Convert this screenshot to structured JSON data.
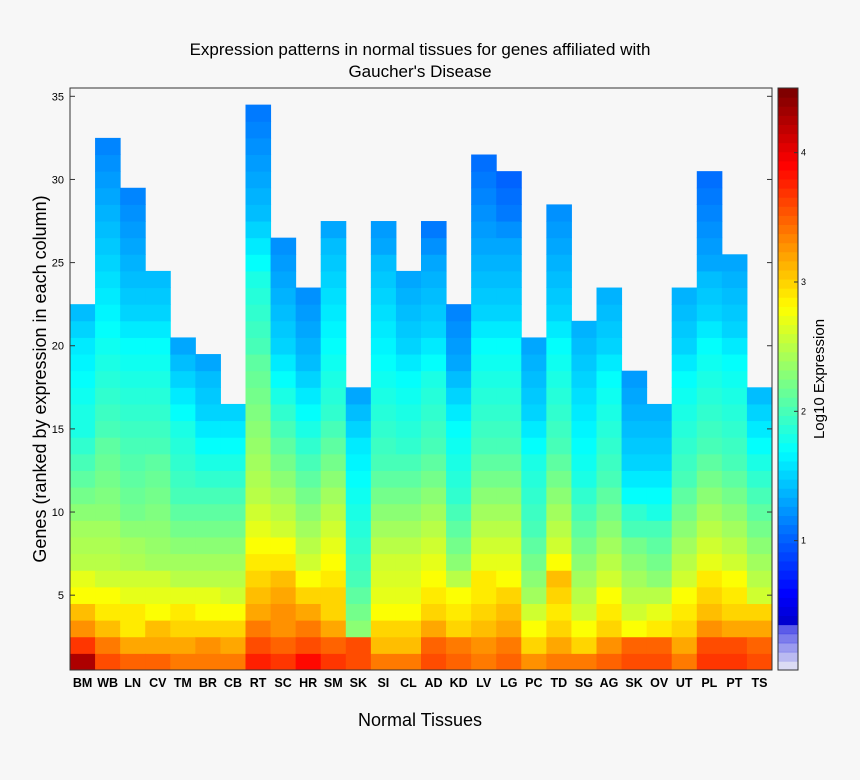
{
  "chart_data": {
    "type": "heatmap",
    "title_line1": "Expression patterns in normal tissues for genes affiliated with",
    "title_line2": "Gaucher's Disease",
    "xlabel": "Normal Tissues",
    "ylabel": "Genes (ranked by expression in each column)",
    "colorbar_label": "Log10 Expression",
    "colorbar_ticks": [
      1,
      2,
      3,
      4
    ],
    "colorbar_range": [
      0,
      4.5
    ],
    "ylim": [
      0.5,
      35.5
    ],
    "yticks": [
      5,
      10,
      15,
      20,
      25,
      30,
      35
    ],
    "categories": [
      "BM",
      "WB",
      "LN",
      "CV",
      "TM",
      "BR",
      "CB",
      "RT",
      "SC",
      "HR",
      "SM",
      "SK",
      "SI",
      "CL",
      "AD",
      "KD",
      "LV",
      "LG",
      "PC",
      "TD",
      "SG",
      "AG",
      "SK",
      "OV",
      "UT",
      "PL",
      "PT",
      "TS"
    ],
    "values": [
      [
        4.3,
        3.7,
        3.3,
        3.1,
        2.8,
        2.7,
        2.5,
        2.45,
        2.4,
        2.3,
        2.2,
        2.1,
        2.0,
        1.9,
        1.8,
        1.8,
        1.75,
        1.7,
        1.65,
        1.6,
        1.5,
        1.4
      ],
      [
        3.6,
        3.4,
        3.1,
        2.9,
        2.8,
        2.6,
        2.5,
        2.45,
        2.4,
        2.3,
        2.25,
        2.2,
        2.15,
        2.1,
        2.0,
        1.95,
        1.9,
        1.85,
        1.8,
        1.75,
        1.7,
        1.65,
        1.6,
        1.55,
        1.5,
        1.45,
        1.4,
        1.35,
        1.3,
        1.25,
        1.2,
        1.15
      ],
      [
        3.5,
        3.2,
        2.9,
        2.9,
        2.7,
        2.6,
        2.45,
        2.4,
        2.3,
        2.2,
        2.15,
        2.1,
        2.05,
        2.0,
        1.95,
        1.9,
        1.85,
        1.8,
        1.75,
        1.7,
        1.6,
        1.5,
        1.45,
        1.4,
        1.35,
        1.3,
        1.25,
        1.2,
        1.15
      ],
      [
        3.5,
        3.2,
        3.1,
        2.8,
        2.7,
        2.6,
        2.4,
        2.35,
        2.3,
        2.25,
        2.2,
        2.15,
        2.1,
        2.0,
        1.95,
        1.9,
        1.85,
        1.8,
        1.75,
        1.7,
        1.6,
        1.5,
        1.45,
        1.4
      ],
      [
        3.4,
        3.2,
        3.0,
        2.9,
        2.7,
        2.5,
        2.4,
        2.3,
        2.2,
        2.1,
        2.0,
        1.95,
        1.9,
        1.85,
        1.8,
        1.7,
        1.6,
        1.5,
        1.4,
        1.3
      ],
      [
        3.4,
        3.3,
        3.0,
        2.8,
        2.7,
        2.5,
        2.4,
        2.3,
        2.2,
        2.1,
        2.0,
        1.9,
        1.8,
        1.7,
        1.6,
        1.5,
        1.45,
        1.4,
        1.3
      ],
      [
        3.4,
        3.2,
        3.0,
        2.8,
        2.6,
        2.5,
        2.4,
        2.3,
        2.2,
        2.1,
        2.0,
        1.9,
        1.8,
        1.7,
        1.6,
        1.5
      ],
      [
        3.8,
        3.6,
        3.4,
        3.2,
        3.1,
        3.0,
        2.9,
        2.8,
        2.7,
        2.6,
        2.5,
        2.45,
        2.4,
        2.35,
        2.3,
        2.25,
        2.2,
        2.15,
        2.1,
        2.0,
        1.95,
        1.9,
        1.85,
        1.8,
        1.7,
        1.6,
        1.5,
        1.4,
        1.35,
        1.3,
        1.25,
        1.2,
        1.15,
        1.1
      ],
      [
        3.7,
        3.5,
        3.3,
        3.3,
        3.2,
        3.1,
        2.9,
        2.8,
        2.6,
        2.5,
        2.4,
        2.3,
        2.2,
        2.1,
        2.0,
        1.9,
        1.8,
        1.7,
        1.6,
        1.5,
        1.45,
        1.4,
        1.35,
        1.3,
        1.25,
        1.2
      ],
      [
        3.9,
        3.6,
        3.4,
        3.2,
        3.0,
        2.8,
        2.6,
        2.5,
        2.4,
        2.3,
        2.2,
        2.1,
        2.0,
        1.9,
        1.8,
        1.7,
        1.6,
        1.5,
        1.4,
        1.35,
        1.3,
        1.25,
        1.2
      ],
      [
        3.7,
        3.5,
        3.2,
        3.0,
        3.0,
        2.9,
        2.8,
        2.7,
        2.6,
        2.5,
        2.4,
        2.3,
        2.2,
        2.1,
        2.0,
        1.9,
        1.85,
        1.8,
        1.75,
        1.7,
        1.65,
        1.6,
        1.55,
        1.5,
        1.45,
        1.4,
        1.3
      ],
      [
        3.6,
        3.6,
        2.3,
        2.2,
        2.1,
        2.0,
        1.95,
        1.9,
        1.85,
        1.8,
        1.75,
        1.7,
        1.65,
        1.6,
        1.5,
        1.4,
        1.3
      ],
      [
        3.4,
        3.1,
        3.0,
        2.8,
        2.7,
        2.65,
        2.6,
        2.5,
        2.4,
        2.3,
        2.2,
        2.1,
        2.0,
        1.95,
        1.9,
        1.85,
        1.8,
        1.75,
        1.7,
        1.65,
        1.6,
        1.55,
        1.5,
        1.45,
        1.4,
        1.3,
        1.25
      ],
      [
        3.4,
        3.1,
        3.0,
        2.8,
        2.7,
        2.65,
        2.6,
        2.5,
        2.4,
        2.3,
        2.2,
        2.1,
        2.0,
        1.9,
        1.85,
        1.8,
        1.75,
        1.7,
        1.6,
        1.5,
        1.45,
        1.4,
        1.35,
        1.3
      ],
      [
        3.6,
        3.5,
        3.2,
        3.0,
        2.9,
        2.8,
        2.7,
        2.6,
        2.5,
        2.4,
        2.3,
        2.2,
        2.1,
        2.0,
        1.95,
        1.9,
        1.85,
        1.8,
        1.7,
        1.6,
        1.5,
        1.45,
        1.4,
        1.35,
        1.3,
        1.2,
        1.1
      ],
      [
        3.5,
        3.4,
        3.0,
        2.9,
        2.8,
        2.5,
        2.3,
        2.2,
        2.1,
        2.0,
        1.9,
        1.85,
        1.8,
        1.75,
        1.7,
        1.6,
        1.5,
        1.4,
        1.3,
        1.25,
        1.2,
        1.15
      ],
      [
        3.4,
        3.3,
        3.1,
        3.0,
        2.9,
        2.9,
        2.7,
        2.6,
        2.5,
        2.4,
        2.3,
        2.2,
        2.1,
        2.0,
        1.95,
        1.9,
        1.85,
        1.8,
        1.75,
        1.7,
        1.6,
        1.5,
        1.45,
        1.4,
        1.35,
        1.3,
        1.25,
        1.2,
        1.15,
        1.1,
        1.05
      ],
      [
        3.5,
        3.4,
        3.2,
        3.1,
        3.0,
        2.8,
        2.7,
        2.6,
        2.5,
        2.4,
        2.3,
        2.2,
        2.1,
        2.0,
        1.95,
        1.9,
        1.85,
        1.8,
        1.75,
        1.7,
        1.6,
        1.5,
        1.45,
        1.4,
        1.35,
        1.3,
        1.2,
        1.1,
        1.05,
        1.0
      ],
      [
        3.3,
        3.0,
        2.8,
        2.6,
        2.4,
        2.3,
        2.2,
        2.1,
        2.0,
        1.95,
        1.9,
        1.85,
        1.8,
        1.7,
        1.6,
        1.5,
        1.45,
        1.4,
        1.35,
        1.3
      ],
      [
        3.4,
        3.2,
        3.0,
        2.9,
        3.0,
        3.1,
        2.8,
        2.6,
        2.5,
        2.4,
        2.3,
        2.2,
        2.1,
        2.0,
        1.95,
        1.9,
        1.85,
        1.8,
        1.75,
        1.7,
        1.6,
        1.5,
        1.45,
        1.4,
        1.35,
        1.3,
        1.25,
        1.2
      ],
      [
        3.4,
        3.0,
        2.8,
        2.6,
        2.5,
        2.4,
        2.3,
        2.2,
        2.1,
        2.0,
        1.9,
        1.8,
        1.75,
        1.7,
        1.65,
        1.6,
        1.55,
        1.5,
        1.45,
        1.4,
        1.35
      ],
      [
        3.5,
        3.3,
        3.0,
        2.9,
        2.8,
        2.6,
        2.5,
        2.4,
        2.3,
        2.2,
        2.1,
        2.0,
        1.95,
        1.9,
        1.85,
        1.8,
        1.75,
        1.7,
        1.6,
        1.5,
        1.45,
        1.4,
        1.35
      ],
      [
        3.6,
        3.5,
        2.8,
        2.6,
        2.5,
        2.4,
        2.3,
        2.2,
        2.0,
        1.9,
        1.7,
        1.6,
        1.5,
        1.45,
        1.4,
        1.35,
        1.3,
        1.25
      ],
      [
        3.6,
        3.5,
        2.9,
        2.7,
        2.5,
        2.3,
        2.2,
        2.1,
        2.0,
        1.8,
        1.7,
        1.6,
        1.5,
        1.45,
        1.4,
        1.35
      ],
      [
        3.4,
        3.2,
        3.0,
        2.9,
        2.8,
        2.6,
        2.5,
        2.4,
        2.3,
        2.2,
        2.1,
        2.0,
        1.95,
        1.9,
        1.85,
        1.8,
        1.75,
        1.7,
        1.6,
        1.5,
        1.45,
        1.4,
        1.35
      ],
      [
        3.7,
        3.6,
        3.3,
        3.1,
        3.0,
        2.9,
        2.7,
        2.6,
        2.5,
        2.4,
        2.3,
        2.2,
        2.1,
        2.0,
        1.95,
        1.9,
        1.85,
        1.8,
        1.75,
        1.7,
        1.6,
        1.5,
        1.45,
        1.4,
        1.3,
        1.25,
        1.2,
        1.15,
        1.1,
        1.05
      ],
      [
        3.7,
        3.6,
        3.2,
        3.0,
        2.9,
        2.8,
        2.6,
        2.5,
        2.4,
        2.3,
        2.2,
        2.1,
        2.0,
        1.95,
        1.9,
        1.85,
        1.8,
        1.75,
        1.7,
        1.6,
        1.5,
        1.45,
        1.4,
        1.35,
        1.3
      ],
      [
        3.6,
        3.5,
        3.2,
        3.0,
        2.6,
        2.5,
        2.4,
        2.3,
        2.2,
        2.1,
        2.0,
        1.9,
        1.8,
        1.7,
        1.6,
        1.5,
        1.4
      ]
    ]
  }
}
